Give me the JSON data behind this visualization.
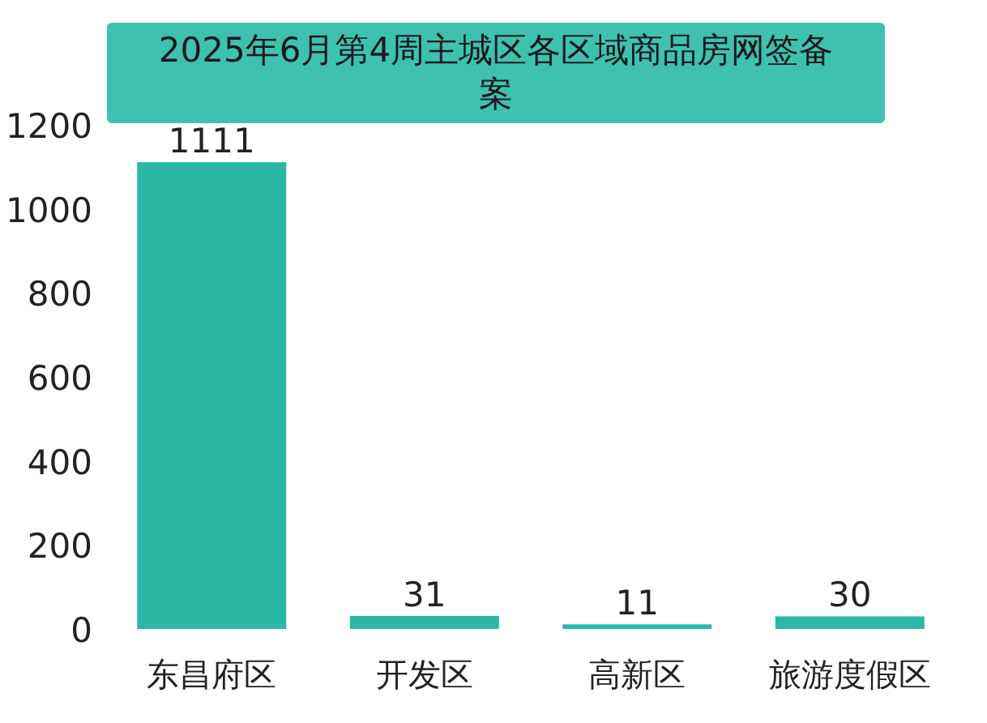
{
  "chart_data": {
    "type": "bar",
    "title": "2025年6月第4周主城区各区域商品房网签备案",
    "categories": [
      "东昌府区",
      "开发区",
      "高新区",
      "旅游度假区"
    ],
    "values": [
      1111,
      31,
      11,
      30
    ],
    "color": "#2bb8a6",
    "ylim": [
      0,
      1200
    ],
    "yticks": [
      0,
      200,
      400,
      600,
      800,
      1000,
      1200
    ],
    "data_labels": true,
    "grid": false
  }
}
